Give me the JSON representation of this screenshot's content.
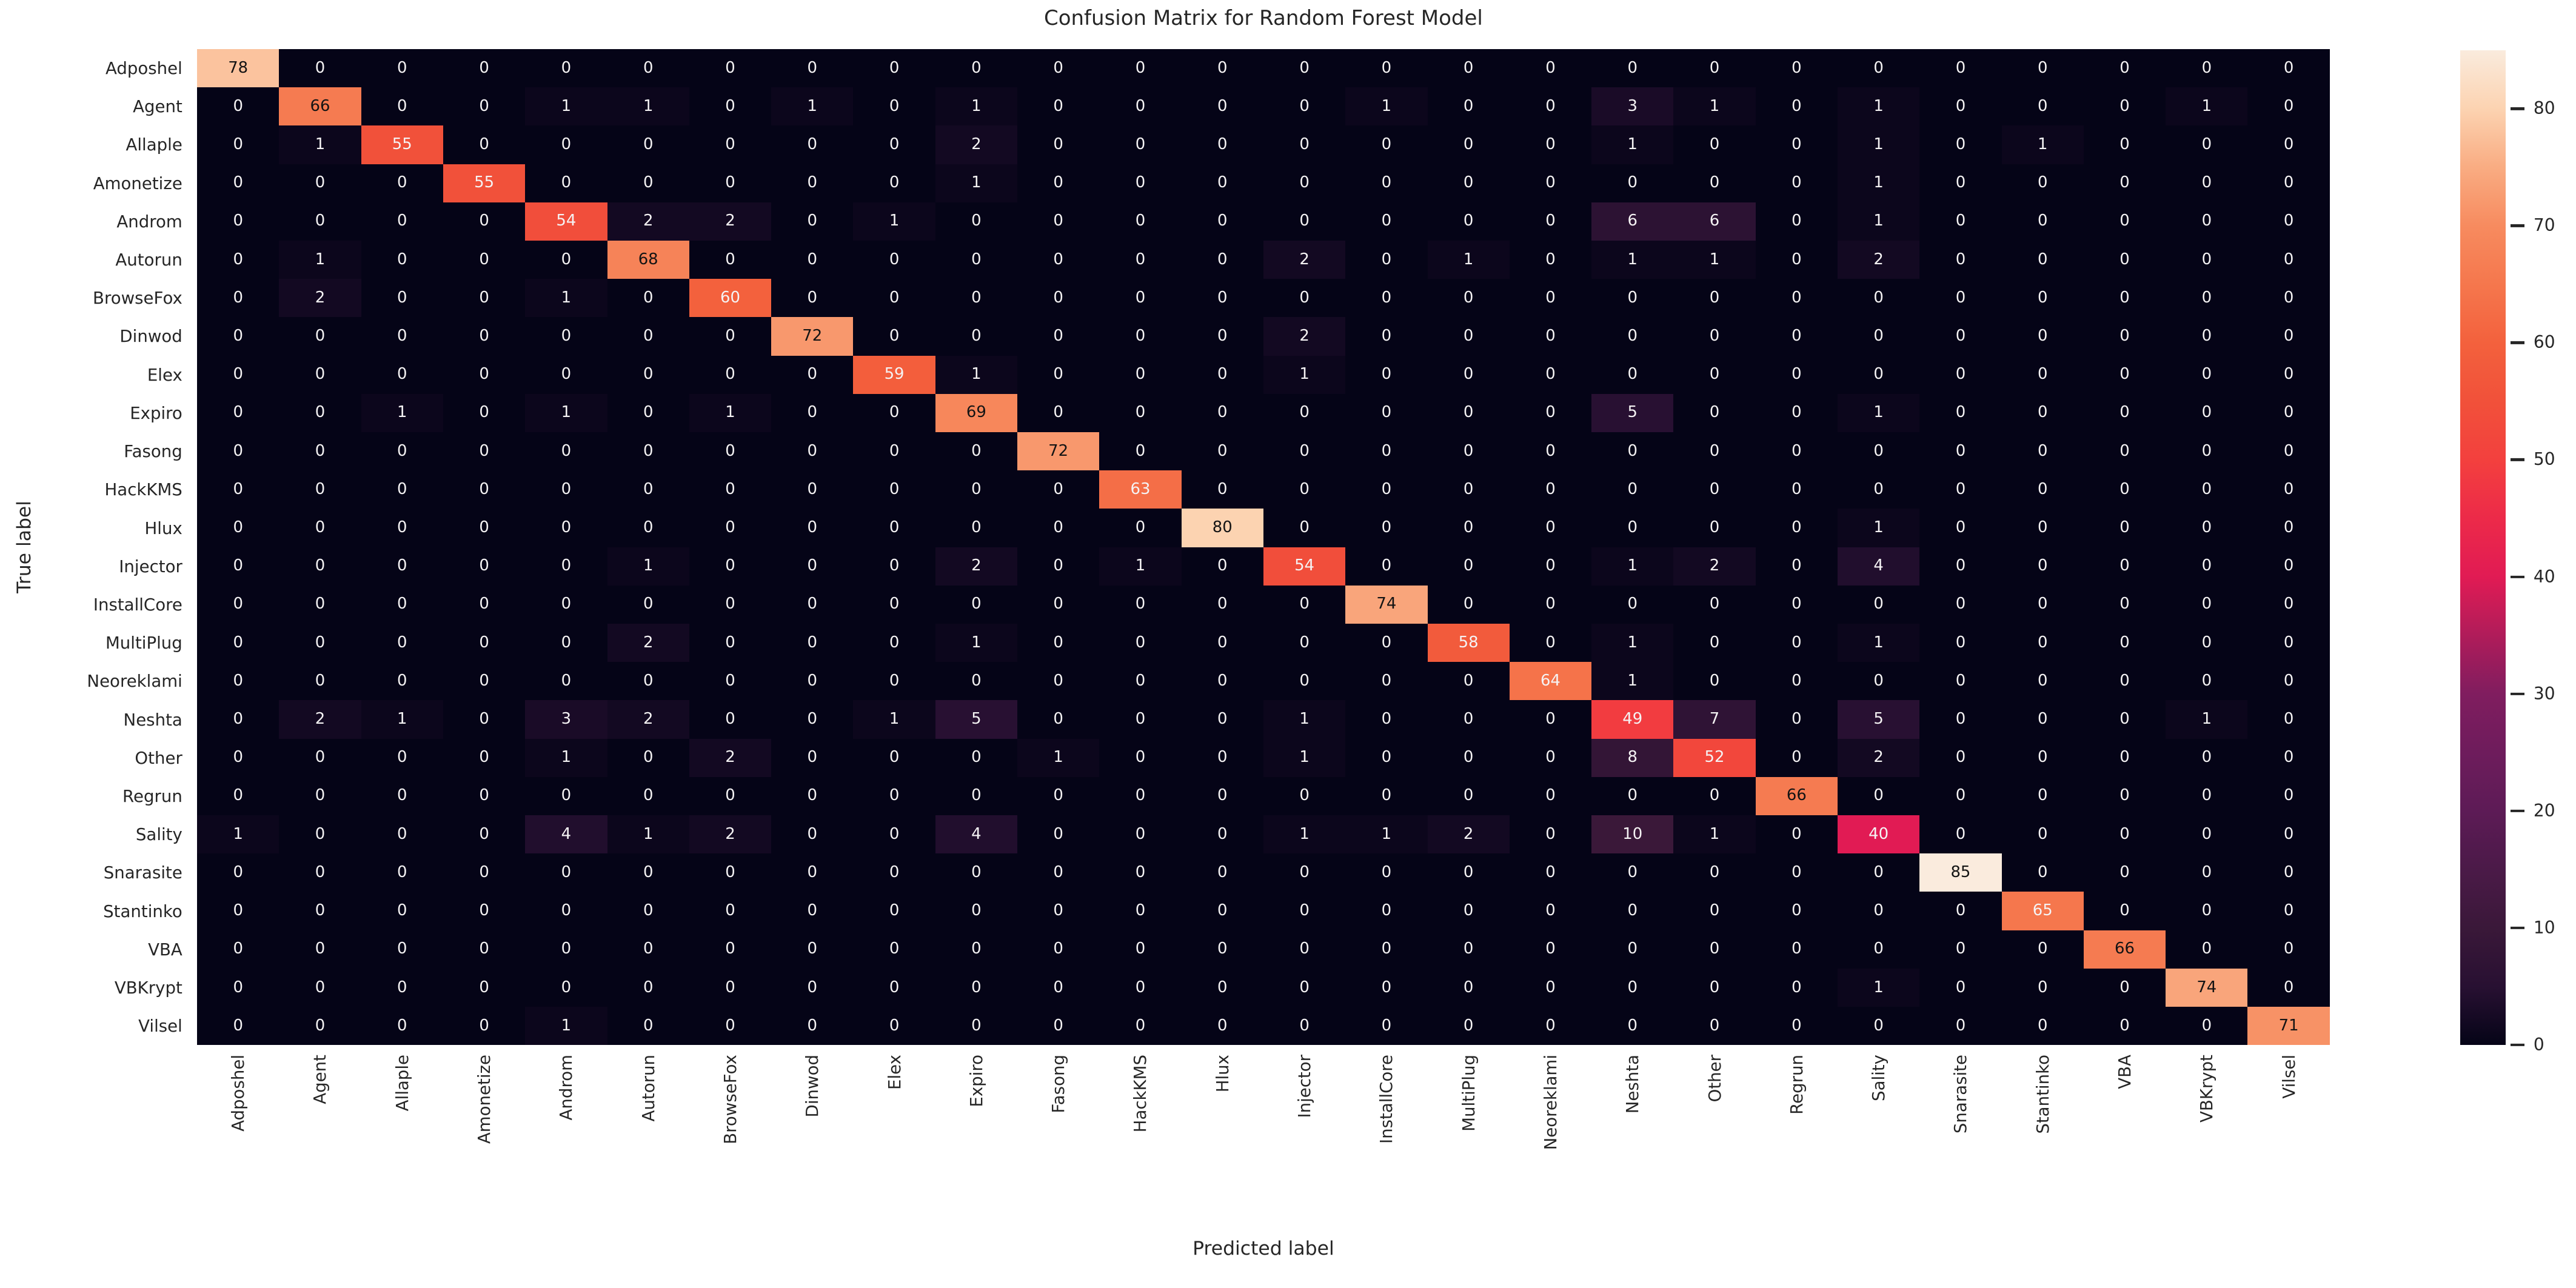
{
  "figure": {
    "title": "Confusion Matrix for Random Forest Model",
    "x_axis_label": "Predicted label",
    "y_axis_label": "True label"
  },
  "chart_data": {
    "type": "heatmap",
    "title": "Confusion Matrix for Random Forest Model",
    "xlabel": "Predicted label",
    "ylabel": "True label",
    "classes": [
      "Adposhel",
      "Agent",
      "Allaple",
      "Amonetize",
      "Androm",
      "Autorun",
      "BrowseFox",
      "Dinwod",
      "Elex",
      "Expiro",
      "Fasong",
      "HackKMS",
      "Hlux",
      "Injector",
      "InstallCore",
      "MultiPlug",
      "Neoreklami",
      "Neshta",
      "Other",
      "Regrun",
      "Sality",
      "Snarasite",
      "Stantinko",
      "VBA",
      "VBKrypt",
      "Vilsel"
    ],
    "matrix": [
      [
        78,
        0,
        0,
        0,
        0,
        0,
        0,
        0,
        0,
        0,
        0,
        0,
        0,
        0,
        0,
        0,
        0,
        0,
        0,
        0,
        0,
        0,
        0,
        0,
        0,
        0
      ],
      [
        0,
        66,
        0,
        0,
        1,
        1,
        0,
        1,
        0,
        1,
        0,
        0,
        0,
        0,
        1,
        0,
        0,
        3,
        1,
        0,
        1,
        0,
        0,
        0,
        1,
        0
      ],
      [
        0,
        1,
        55,
        0,
        0,
        0,
        0,
        0,
        0,
        2,
        0,
        0,
        0,
        0,
        0,
        0,
        0,
        1,
        0,
        0,
        1,
        0,
        1,
        0,
        0,
        0
      ],
      [
        0,
        0,
        0,
        55,
        0,
        0,
        0,
        0,
        0,
        1,
        0,
        0,
        0,
        0,
        0,
        0,
        0,
        0,
        0,
        0,
        1,
        0,
        0,
        0,
        0,
        0
      ],
      [
        0,
        0,
        0,
        0,
        54,
        2,
        2,
        0,
        1,
        0,
        0,
        0,
        0,
        0,
        0,
        0,
        0,
        6,
        6,
        0,
        1,
        0,
        0,
        0,
        0,
        0
      ],
      [
        0,
        1,
        0,
        0,
        0,
        68,
        0,
        0,
        0,
        0,
        0,
        0,
        0,
        2,
        0,
        1,
        0,
        1,
        1,
        0,
        2,
        0,
        0,
        0,
        0,
        0
      ],
      [
        0,
        2,
        0,
        0,
        1,
        0,
        60,
        0,
        0,
        0,
        0,
        0,
        0,
        0,
        0,
        0,
        0,
        0,
        0,
        0,
        0,
        0,
        0,
        0,
        0,
        0
      ],
      [
        0,
        0,
        0,
        0,
        0,
        0,
        0,
        72,
        0,
        0,
        0,
        0,
        0,
        2,
        0,
        0,
        0,
        0,
        0,
        0,
        0,
        0,
        0,
        0,
        0,
        0
      ],
      [
        0,
        0,
        0,
        0,
        0,
        0,
        0,
        0,
        59,
        1,
        0,
        0,
        0,
        1,
        0,
        0,
        0,
        0,
        0,
        0,
        0,
        0,
        0,
        0,
        0,
        0
      ],
      [
        0,
        0,
        1,
        0,
        1,
        0,
        1,
        0,
        0,
        69,
        0,
        0,
        0,
        0,
        0,
        0,
        0,
        5,
        0,
        0,
        1,
        0,
        0,
        0,
        0,
        0
      ],
      [
        0,
        0,
        0,
        0,
        0,
        0,
        0,
        0,
        0,
        0,
        72,
        0,
        0,
        0,
        0,
        0,
        0,
        0,
        0,
        0,
        0,
        0,
        0,
        0,
        0,
        0
      ],
      [
        0,
        0,
        0,
        0,
        0,
        0,
        0,
        0,
        0,
        0,
        0,
        63,
        0,
        0,
        0,
        0,
        0,
        0,
        0,
        0,
        0,
        0,
        0,
        0,
        0,
        0
      ],
      [
        0,
        0,
        0,
        0,
        0,
        0,
        0,
        0,
        0,
        0,
        0,
        0,
        80,
        0,
        0,
        0,
        0,
        0,
        0,
        0,
        1,
        0,
        0,
        0,
        0,
        0
      ],
      [
        0,
        0,
        0,
        0,
        0,
        1,
        0,
        0,
        0,
        2,
        0,
        1,
        0,
        54,
        0,
        0,
        0,
        1,
        2,
        0,
        4,
        0,
        0,
        0,
        0,
        0
      ],
      [
        0,
        0,
        0,
        0,
        0,
        0,
        0,
        0,
        0,
        0,
        0,
        0,
        0,
        0,
        74,
        0,
        0,
        0,
        0,
        0,
        0,
        0,
        0,
        0,
        0,
        0
      ],
      [
        0,
        0,
        0,
        0,
        0,
        2,
        0,
        0,
        0,
        1,
        0,
        0,
        0,
        0,
        0,
        58,
        0,
        1,
        0,
        0,
        1,
        0,
        0,
        0,
        0,
        0
      ],
      [
        0,
        0,
        0,
        0,
        0,
        0,
        0,
        0,
        0,
        0,
        0,
        0,
        0,
        0,
        0,
        0,
        64,
        1,
        0,
        0,
        0,
        0,
        0,
        0,
        0,
        0
      ],
      [
        0,
        2,
        1,
        0,
        3,
        2,
        0,
        0,
        1,
        5,
        0,
        0,
        0,
        1,
        0,
        0,
        0,
        49,
        7,
        0,
        5,
        0,
        0,
        0,
        1,
        0
      ],
      [
        0,
        0,
        0,
        0,
        1,
        0,
        2,
        0,
        0,
        0,
        1,
        0,
        0,
        1,
        0,
        0,
        0,
        8,
        52,
        0,
        2,
        0,
        0,
        0,
        0,
        0
      ],
      [
        0,
        0,
        0,
        0,
        0,
        0,
        0,
        0,
        0,
        0,
        0,
        0,
        0,
        0,
        0,
        0,
        0,
        0,
        0,
        66,
        0,
        0,
        0,
        0,
        0,
        0
      ],
      [
        1,
        0,
        0,
        0,
        4,
        1,
        2,
        0,
        0,
        4,
        0,
        0,
        0,
        1,
        1,
        2,
        0,
        10,
        1,
        0,
        40,
        0,
        0,
        0,
        0,
        0
      ],
      [
        0,
        0,
        0,
        0,
        0,
        0,
        0,
        0,
        0,
        0,
        0,
        0,
        0,
        0,
        0,
        0,
        0,
        0,
        0,
        0,
        0,
        85,
        0,
        0,
        0,
        0
      ],
      [
        0,
        0,
        0,
        0,
        0,
        0,
        0,
        0,
        0,
        0,
        0,
        0,
        0,
        0,
        0,
        0,
        0,
        0,
        0,
        0,
        0,
        0,
        65,
        0,
        0,
        0
      ],
      [
        0,
        0,
        0,
        0,
        0,
        0,
        0,
        0,
        0,
        0,
        0,
        0,
        0,
        0,
        0,
        0,
        0,
        0,
        0,
        0,
        0,
        0,
        0,
        66,
        0,
        0
      ],
      [
        0,
        0,
        0,
        0,
        0,
        0,
        0,
        0,
        0,
        0,
        0,
        0,
        0,
        0,
        0,
        0,
        0,
        0,
        0,
        0,
        1,
        0,
        0,
        0,
        74,
        0
      ],
      [
        0,
        0,
        0,
        0,
        1,
        0,
        0,
        0,
        0,
        0,
        0,
        0,
        0,
        0,
        0,
        0,
        0,
        0,
        0,
        0,
        0,
        0,
        0,
        0,
        0,
        71
      ]
    ],
    "vmin": 0,
    "vmax": 85,
    "colorbar_ticks": [
      0,
      10,
      20,
      30,
      40,
      50,
      60,
      70,
      80
    ],
    "colormap_name": "rocket",
    "colormap_stops": [
      [
        0,
        "#050417"
      ],
      [
        5,
        "#281032"
      ],
      [
        10,
        "#3A1839"
      ],
      [
        15,
        "#4B1A48"
      ],
      [
        20,
        "#5D1B56"
      ],
      [
        25,
        "#6E1C5C"
      ],
      [
        30,
        "#801D5F"
      ],
      [
        35,
        "#B01C5A"
      ],
      [
        40,
        "#E11B54"
      ],
      [
        45,
        "#EC2A49"
      ],
      [
        50,
        "#F3403E"
      ],
      [
        55,
        "#F1513A"
      ],
      [
        60,
        "#F3613D"
      ],
      [
        65,
        "#F5774D"
      ],
      [
        70,
        "#F78B5F"
      ],
      [
        75,
        "#F9AC82"
      ],
      [
        80,
        "#FCD3B1"
      ],
      [
        85,
        "#FAEBDD"
      ]
    ],
    "annotation_color_light": "#F5F3F4",
    "annotation_color_dark": "#141414",
    "dark_text_threshold": 66,
    "grid_on": false,
    "legend_position": "right-colorbar"
  }
}
